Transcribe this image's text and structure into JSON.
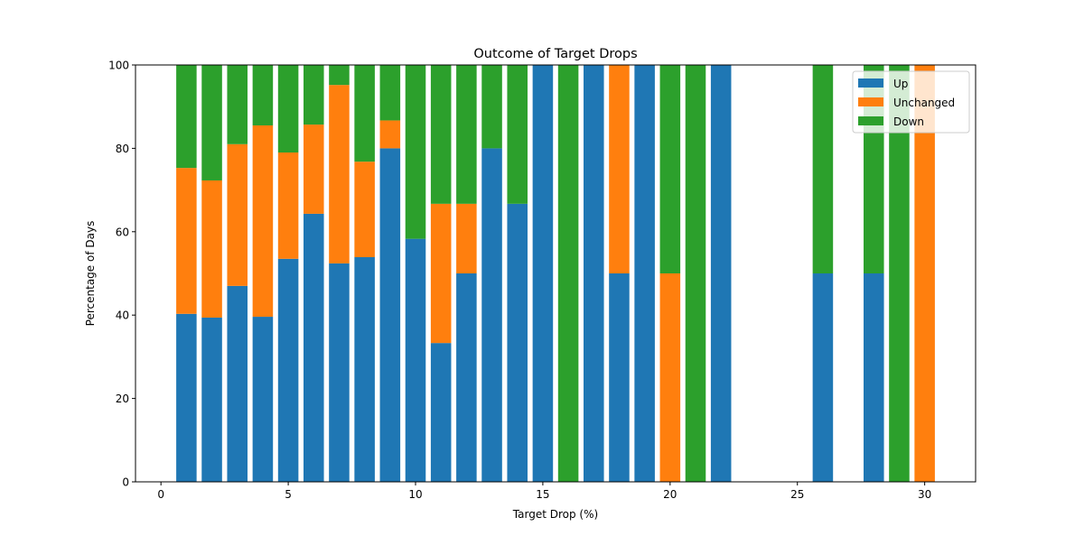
{
  "chart_data": {
    "type": "bar",
    "stacked": true,
    "title": "Outcome of Target Drops",
    "xlabel": "Target Drop (%)",
    "ylabel": "Percentage of Days",
    "xlim": [
      -1,
      32
    ],
    "ylim": [
      0,
      100
    ],
    "xticks": [
      0,
      5,
      10,
      15,
      20,
      25,
      30
    ],
    "yticks": [
      0,
      20,
      40,
      60,
      80,
      100
    ],
    "grid": false,
    "legend_position": "top-right",
    "x": [
      1,
      2,
      3,
      4,
      5,
      6,
      7,
      8,
      9,
      10,
      11,
      12,
      13,
      14,
      15,
      16,
      17,
      18,
      19,
      20,
      21,
      22,
      26,
      28,
      29,
      30
    ],
    "series": [
      {
        "name": "Up",
        "color": "#1f77b4",
        "values": [
          40.3,
          39.4,
          47.0,
          39.6,
          53.5,
          64.3,
          52.4,
          53.9,
          80.0,
          58.3,
          33.3,
          50.0,
          80.0,
          66.7,
          100,
          0,
          100,
          50,
          100,
          0,
          0,
          100,
          50,
          50,
          0,
          0
        ]
      },
      {
        "name": "Unchanged",
        "color": "#ff7f0e",
        "values": [
          35.0,
          32.9,
          34.0,
          45.9,
          25.5,
          21.4,
          42.8,
          22.9,
          6.7,
          0,
          33.4,
          16.7,
          0,
          0,
          0,
          0,
          0,
          50,
          0,
          50,
          0,
          0,
          0,
          0,
          0,
          100
        ]
      },
      {
        "name": "Down",
        "color": "#2ca02c",
        "values": [
          24.7,
          27.7,
          19.0,
          14.5,
          21.0,
          14.3,
          4.8,
          23.2,
          13.3,
          41.7,
          33.3,
          33.3,
          20.0,
          33.3,
          0,
          100,
          0,
          0,
          0,
          50,
          100,
          0,
          50,
          50,
          100,
          0
        ]
      }
    ]
  }
}
